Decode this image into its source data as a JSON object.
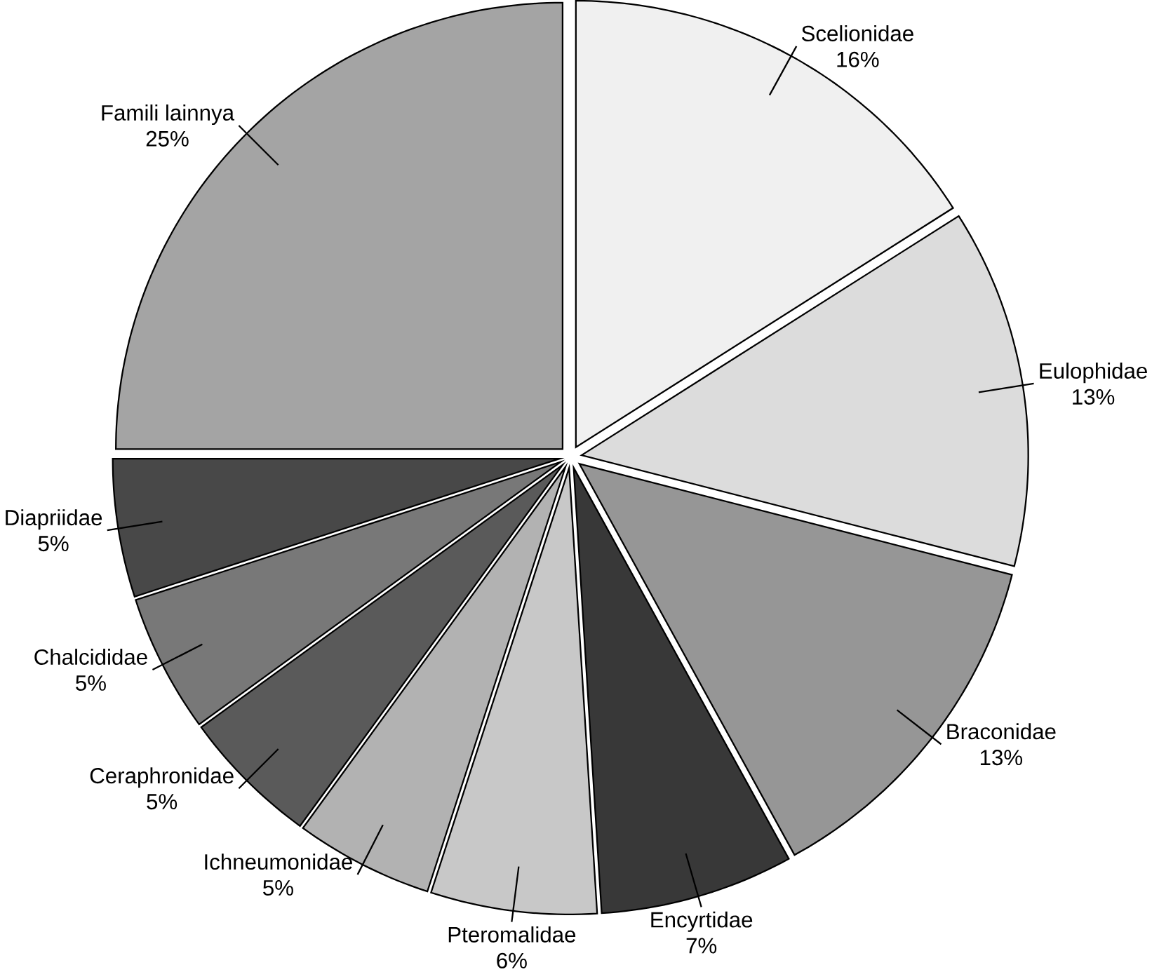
{
  "chart_data": {
    "type": "pie",
    "categories": [
      "Scelionidae",
      "Eulophidae",
      "Braconidae",
      "Encyrtidae",
      "Pteromalidae",
      "Ichneumonidae",
      "Ceraphronidae",
      "Chalcididae",
      "Diapriidae",
      "Famili lainnya"
    ],
    "values": [
      16,
      13,
      13,
      7,
      6,
      5,
      5,
      5,
      5,
      25
    ],
    "value_labels": [
      "16%",
      "13%",
      "13%",
      "7%",
      "6%",
      "5%",
      "5%",
      "5%",
      "5%",
      "25%"
    ],
    "colors": [
      "#f0f0f0",
      "#dcdcdc",
      "#969696",
      "#383838",
      "#c8c8c8",
      "#b2b2b2",
      "#5a5a5a",
      "#787878",
      "#484848",
      "#a4a4a4"
    ]
  }
}
